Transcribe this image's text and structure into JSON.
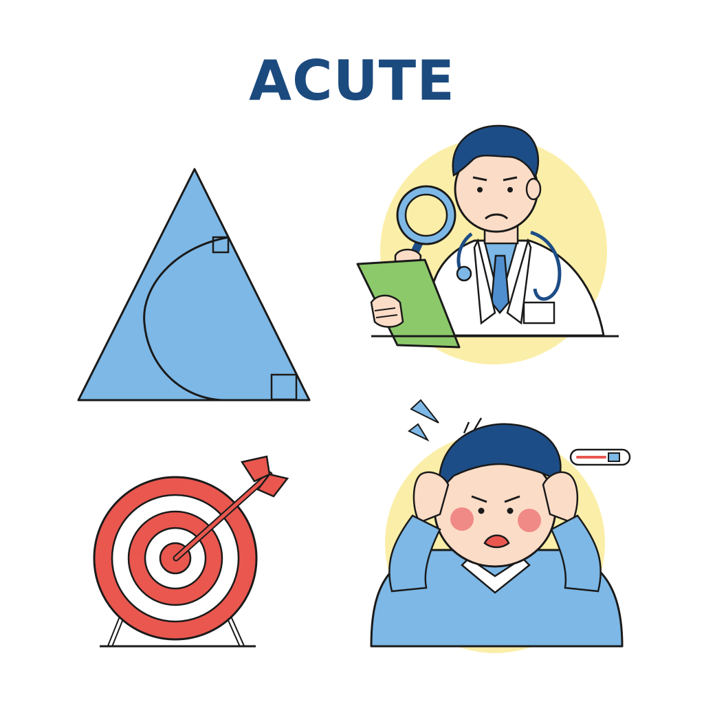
{
  "title": "ACUTE",
  "colors": {
    "title": "#1b4a7e",
    "blue_fill": "#7db8e6",
    "outline": "#1a1a1a",
    "target_red": "#e9574f",
    "yellow_halo": "#fbeea8",
    "clipboard_green": "#8cc96a",
    "hair": "#1d4d86",
    "skin": "#fbdcc7",
    "cheek": "#f08a86"
  },
  "panels": [
    {
      "name": "acute-triangle",
      "icon": "triangle-icon"
    },
    {
      "name": "doctor-examining",
      "icon": "doctor-magnifier-icon"
    },
    {
      "name": "target-bullseye",
      "icon": "target-arrow-icon"
    },
    {
      "name": "person-headache",
      "icon": "sick-person-thermometer-icon"
    }
  ]
}
